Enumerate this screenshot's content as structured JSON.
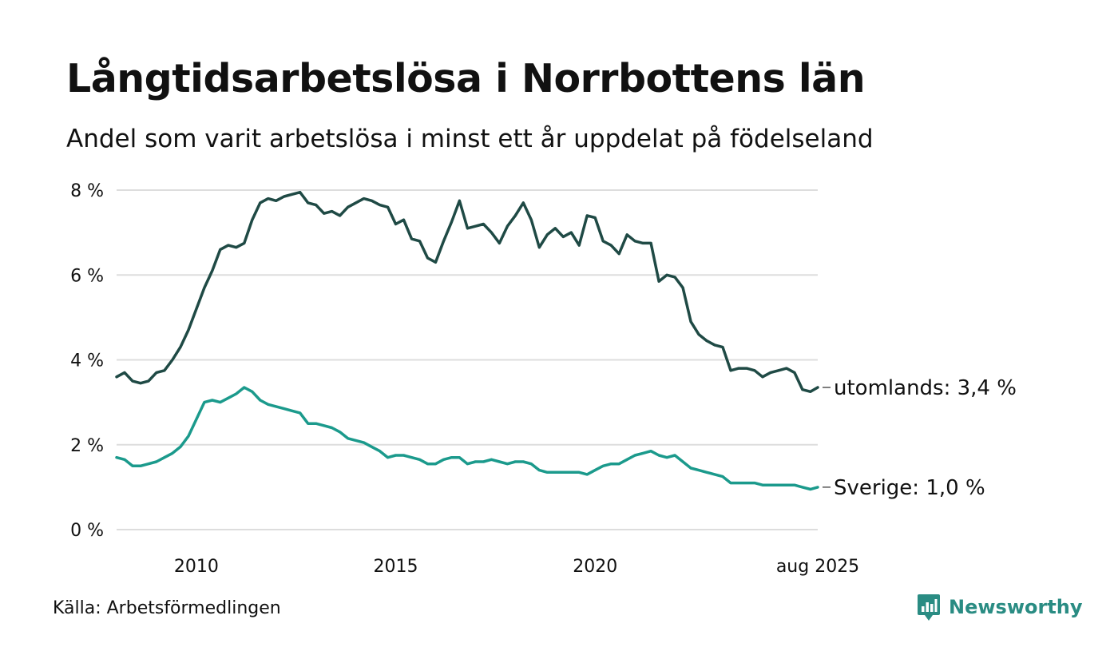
{
  "title": "Långtidsarbetslösa i Norrbottens län",
  "subtitle": "Andel som varit arbetslösa i minst ett år uppdelat på födelseland",
  "source": "Källa: Arbetsförmedlingen",
  "brand": {
    "name": "Newsworthy",
    "icon": "newsworthy-logo-icon"
  },
  "colors": {
    "utomlands": "#1f4a45",
    "sverige": "#1b9a8c",
    "grid": "#dddddd",
    "brand": "#2a8c83"
  },
  "chart_data": {
    "type": "line",
    "x_range": [
      2008.0,
      2025.583
    ],
    "ylim": [
      0,
      8
    ],
    "y_ticks": [
      0,
      2,
      4,
      6,
      8
    ],
    "y_tick_labels": [
      "0 %",
      "2 %",
      "4 %",
      "6 %",
      "8 %"
    ],
    "x_ticks": [
      2010,
      2015,
      2020,
      2025.583
    ],
    "x_tick_labels": [
      "2010",
      "2015",
      "2020",
      "aug 2025"
    ],
    "grid": "horizontal",
    "legend": "end-of-line labels",
    "series": [
      {
        "key": "utomlands",
        "end_label": "utomlands: 3,4 %",
        "points": [
          [
            2008.0,
            3.6
          ],
          [
            2008.2,
            3.7
          ],
          [
            2008.4,
            3.5
          ],
          [
            2008.6,
            3.45
          ],
          [
            2008.8,
            3.5
          ],
          [
            2009.0,
            3.7
          ],
          [
            2009.2,
            3.75
          ],
          [
            2009.4,
            4.0
          ],
          [
            2009.6,
            4.3
          ],
          [
            2009.8,
            4.7
          ],
          [
            2010.0,
            5.2
          ],
          [
            2010.2,
            5.7
          ],
          [
            2010.4,
            6.1
          ],
          [
            2010.6,
            6.6
          ],
          [
            2010.8,
            6.7
          ],
          [
            2011.0,
            6.65
          ],
          [
            2011.2,
            6.75
          ],
          [
            2011.4,
            7.3
          ],
          [
            2011.6,
            7.7
          ],
          [
            2011.8,
            7.8
          ],
          [
            2012.0,
            7.75
          ],
          [
            2012.2,
            7.85
          ],
          [
            2012.4,
            7.9
          ],
          [
            2012.6,
            7.95
          ],
          [
            2012.8,
            7.7
          ],
          [
            2013.0,
            7.65
          ],
          [
            2013.2,
            7.45
          ],
          [
            2013.4,
            7.5
          ],
          [
            2013.6,
            7.4
          ],
          [
            2013.8,
            7.6
          ],
          [
            2014.0,
            7.7
          ],
          [
            2014.2,
            7.8
          ],
          [
            2014.4,
            7.75
          ],
          [
            2014.6,
            7.65
          ],
          [
            2014.8,
            7.6
          ],
          [
            2015.0,
            7.2
          ],
          [
            2015.2,
            7.3
          ],
          [
            2015.4,
            6.85
          ],
          [
            2015.6,
            6.8
          ],
          [
            2015.8,
            6.4
          ],
          [
            2016.0,
            6.3
          ],
          [
            2016.2,
            6.8
          ],
          [
            2016.4,
            7.25
          ],
          [
            2016.6,
            7.75
          ],
          [
            2016.8,
            7.1
          ],
          [
            2017.0,
            7.15
          ],
          [
            2017.2,
            7.2
          ],
          [
            2017.4,
            7.0
          ],
          [
            2017.6,
            6.75
          ],
          [
            2017.8,
            7.15
          ],
          [
            2018.0,
            7.4
          ],
          [
            2018.2,
            7.7
          ],
          [
            2018.4,
            7.3
          ],
          [
            2018.6,
            6.65
          ],
          [
            2018.8,
            6.95
          ],
          [
            2019.0,
            7.1
          ],
          [
            2019.2,
            6.9
          ],
          [
            2019.4,
            7.0
          ],
          [
            2019.6,
            6.7
          ],
          [
            2019.8,
            7.4
          ],
          [
            2020.0,
            7.35
          ],
          [
            2020.2,
            6.8
          ],
          [
            2020.4,
            6.7
          ],
          [
            2020.6,
            6.5
          ],
          [
            2020.8,
            6.95
          ],
          [
            2021.0,
            6.8
          ],
          [
            2021.2,
            6.75
          ],
          [
            2021.4,
            6.75
          ],
          [
            2021.6,
            5.85
          ],
          [
            2021.8,
            6.0
          ],
          [
            2022.0,
            5.95
          ],
          [
            2022.2,
            5.7
          ],
          [
            2022.4,
            4.9
          ],
          [
            2022.6,
            4.6
          ],
          [
            2022.8,
            4.45
          ],
          [
            2023.0,
            4.35
          ],
          [
            2023.2,
            4.3
          ],
          [
            2023.4,
            3.75
          ],
          [
            2023.6,
            3.8
          ],
          [
            2023.8,
            3.8
          ],
          [
            2024.0,
            3.75
          ],
          [
            2024.2,
            3.6
          ],
          [
            2024.4,
            3.7
          ],
          [
            2024.6,
            3.75
          ],
          [
            2024.8,
            3.8
          ],
          [
            2025.0,
            3.7
          ],
          [
            2025.2,
            3.3
          ],
          [
            2025.4,
            3.25
          ],
          [
            2025.583,
            3.35
          ]
        ]
      },
      {
        "key": "sverige",
        "end_label": "Sverige: 1,0 %",
        "points": [
          [
            2008.0,
            1.7
          ],
          [
            2008.2,
            1.65
          ],
          [
            2008.4,
            1.5
          ],
          [
            2008.6,
            1.5
          ],
          [
            2008.8,
            1.55
          ],
          [
            2009.0,
            1.6
          ],
          [
            2009.2,
            1.7
          ],
          [
            2009.4,
            1.8
          ],
          [
            2009.6,
            1.95
          ],
          [
            2009.8,
            2.2
          ],
          [
            2010.0,
            2.6
          ],
          [
            2010.2,
            3.0
          ],
          [
            2010.4,
            3.05
          ],
          [
            2010.6,
            3.0
          ],
          [
            2010.8,
            3.1
          ],
          [
            2011.0,
            3.2
          ],
          [
            2011.2,
            3.35
          ],
          [
            2011.4,
            3.25
          ],
          [
            2011.6,
            3.05
          ],
          [
            2011.8,
            2.95
          ],
          [
            2012.0,
            2.9
          ],
          [
            2012.2,
            2.85
          ],
          [
            2012.4,
            2.8
          ],
          [
            2012.6,
            2.75
          ],
          [
            2012.8,
            2.5
          ],
          [
            2013.0,
            2.5
          ],
          [
            2013.2,
            2.45
          ],
          [
            2013.4,
            2.4
          ],
          [
            2013.6,
            2.3
          ],
          [
            2013.8,
            2.15
          ],
          [
            2014.0,
            2.1
          ],
          [
            2014.2,
            2.05
          ],
          [
            2014.4,
            1.95
          ],
          [
            2014.6,
            1.85
          ],
          [
            2014.8,
            1.7
          ],
          [
            2015.0,
            1.75
          ],
          [
            2015.2,
            1.75
          ],
          [
            2015.4,
            1.7
          ],
          [
            2015.6,
            1.65
          ],
          [
            2015.8,
            1.55
          ],
          [
            2016.0,
            1.55
          ],
          [
            2016.2,
            1.65
          ],
          [
            2016.4,
            1.7
          ],
          [
            2016.6,
            1.7
          ],
          [
            2016.8,
            1.55
          ],
          [
            2017.0,
            1.6
          ],
          [
            2017.2,
            1.6
          ],
          [
            2017.4,
            1.65
          ],
          [
            2017.6,
            1.6
          ],
          [
            2017.8,
            1.55
          ],
          [
            2018.0,
            1.6
          ],
          [
            2018.2,
            1.6
          ],
          [
            2018.4,
            1.55
          ],
          [
            2018.6,
            1.4
          ],
          [
            2018.8,
            1.35
          ],
          [
            2019.0,
            1.35
          ],
          [
            2019.2,
            1.35
          ],
          [
            2019.4,
            1.35
          ],
          [
            2019.6,
            1.35
          ],
          [
            2019.8,
            1.3
          ],
          [
            2020.0,
            1.4
          ],
          [
            2020.2,
            1.5
          ],
          [
            2020.4,
            1.55
          ],
          [
            2020.6,
            1.55
          ],
          [
            2020.8,
            1.65
          ],
          [
            2021.0,
            1.75
          ],
          [
            2021.2,
            1.8
          ],
          [
            2021.4,
            1.85
          ],
          [
            2021.6,
            1.75
          ],
          [
            2021.8,
            1.7
          ],
          [
            2022.0,
            1.75
          ],
          [
            2022.2,
            1.6
          ],
          [
            2022.4,
            1.45
          ],
          [
            2022.6,
            1.4
          ],
          [
            2022.8,
            1.35
          ],
          [
            2023.0,
            1.3
          ],
          [
            2023.2,
            1.25
          ],
          [
            2023.4,
            1.1
          ],
          [
            2023.6,
            1.1
          ],
          [
            2023.8,
            1.1
          ],
          [
            2024.0,
            1.1
          ],
          [
            2024.2,
            1.05
          ],
          [
            2024.4,
            1.05
          ],
          [
            2024.6,
            1.05
          ],
          [
            2024.8,
            1.05
          ],
          [
            2025.0,
            1.05
          ],
          [
            2025.2,
            1.0
          ],
          [
            2025.4,
            0.95
          ],
          [
            2025.583,
            1.0
          ]
        ]
      }
    ]
  }
}
